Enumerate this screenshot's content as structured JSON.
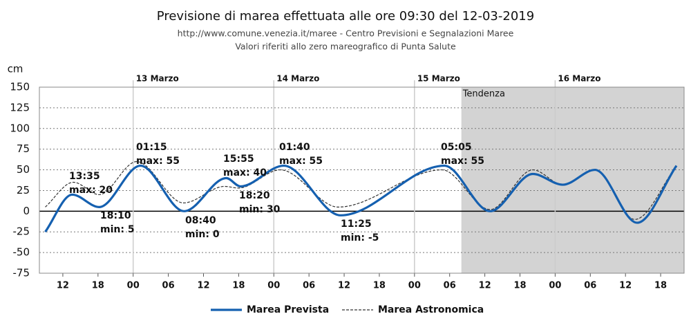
{
  "chart_data": {
    "type": "line",
    "title": "Previsione di marea effettuata alle ore 09:30 del 12-03-2019",
    "subtitle": [
      "http://www.comune.venezia.it/maree - Centro Previsioni e Segnalazioni Maree",
      "Valori riferiti allo zero mareografico di Punta Salute"
    ],
    "y_label": "cm",
    "xlim": [
      8,
      118
    ],
    "ylim": [
      -75,
      150
    ],
    "yticks": [
      -75,
      -50,
      -25,
      0,
      25,
      50,
      75,
      100,
      125,
      150
    ],
    "xticks": [
      12,
      18,
      {
        "value": 24,
        "label": "00"
      },
      {
        "value": 30,
        "label": "06"
      },
      {
        "value": 36,
        "label": "12"
      },
      {
        "value": 42,
        "label": "18"
      },
      {
        "value": 48,
        "label": "00"
      },
      {
        "value": 54,
        "label": "06"
      },
      {
        "value": 60,
        "label": "12"
      },
      {
        "value": 66,
        "label": "18"
      },
      {
        "value": 72,
        "label": "00"
      },
      {
        "value": 78,
        "label": "06"
      },
      {
        "value": 84,
        "label": "12"
      },
      {
        "value": 90,
        "label": "18"
      },
      {
        "value": 96,
        "label": "00"
      },
      {
        "value": 102,
        "label": "06"
      },
      {
        "value": 108,
        "label": "12"
      },
      {
        "value": 114,
        "label": "18"
      }
    ],
    "day_markers": [
      {
        "value": 24,
        "label": "13 Marzo"
      },
      {
        "value": 48,
        "label": "14 Marzo"
      },
      {
        "value": 72,
        "label": "15 Marzo"
      },
      {
        "value": 96,
        "label": "16 Marzo"
      }
    ],
    "trend_region": {
      "label": "Tendenza",
      "start": 80
    },
    "grid": true,
    "series": [
      {
        "name": "Marea Prevista",
        "color": "#1560b0",
        "style": "solid",
        "x": [
          9,
          13.6,
          18.2,
          25.25,
          32.7,
          39.9,
          42.3,
          49.7,
          59.4,
          77.1,
          84.9,
          92.2,
          97.3,
          102.8,
          110,
          116.7
        ],
        "values": [
          -25,
          20,
          5,
          55,
          0,
          40,
          30,
          55,
          -5,
          55,
          0,
          45,
          32,
          50,
          -14,
          55
        ]
      },
      {
        "name": "Marea Astronomica",
        "color": "#333333",
        "style": "dashed",
        "x": [
          9,
          13.8,
          18.2,
          24.6,
          32.6,
          39.6,
          42,
          49.1,
          59,
          76.7,
          84.9,
          92.2,
          97.3,
          102.8,
          109.6,
          116.7
        ],
        "values": [
          5,
          35,
          20,
          60,
          10,
          30,
          28,
          50,
          5,
          50,
          2,
          50,
          32,
          50,
          -10,
          55
        ]
      }
    ],
    "annotations": [
      {
        "time": "13:35",
        "level": "max: 20"
      },
      {
        "time": "18:10",
        "level": "min: 5"
      },
      {
        "time": "01:15",
        "level": "max: 55"
      },
      {
        "time": "08:40",
        "level": "min: 0"
      },
      {
        "time": "15:55",
        "level": "max: 40"
      },
      {
        "time": "18:20",
        "level": "min: 30"
      },
      {
        "time": "01:40",
        "level": "max: 55"
      },
      {
        "time": "11:25",
        "level": "min: -5"
      },
      {
        "time": "05:05",
        "level": "max: 55"
      }
    ]
  }
}
